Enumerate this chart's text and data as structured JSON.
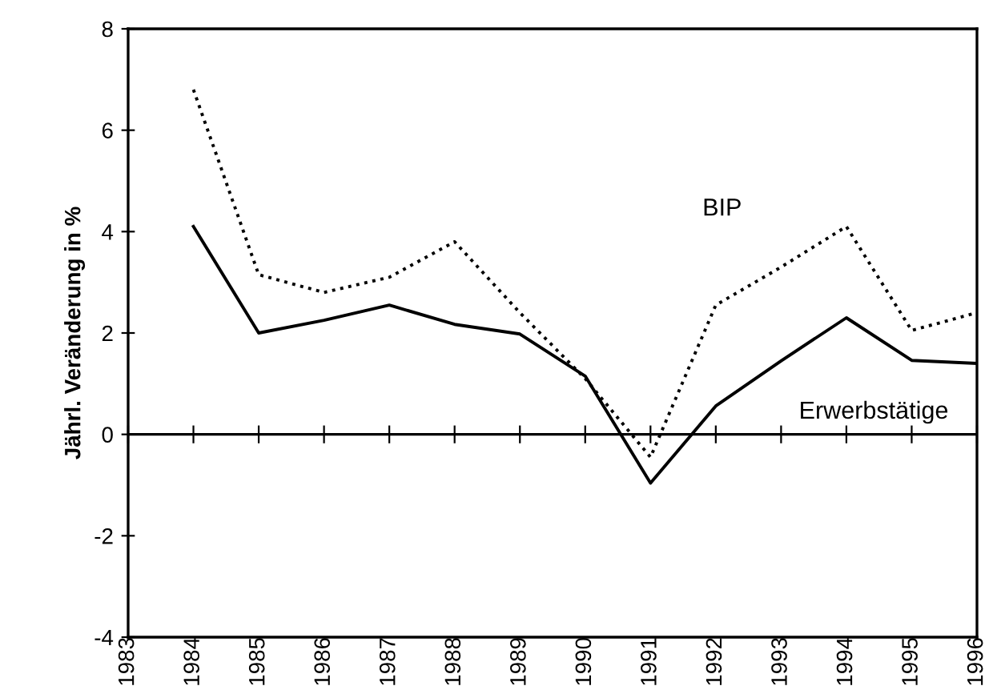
{
  "chart_data": {
    "type": "line",
    "ylabel": "Jährl. Veränderung in %",
    "x": [
      1984,
      1985,
      1986,
      1987,
      1988,
      1989,
      1990,
      1991,
      1992,
      1993,
      1994,
      1995,
      1996
    ],
    "series": [
      {
        "name": "BIP",
        "color": "#000000",
        "line_style": "dotted",
        "values": [
          6.8,
          3.15,
          2.8,
          3.1,
          3.8,
          2.4,
          1.1,
          -0.45,
          2.55,
          3.3,
          4.1,
          2.05,
          2.4
        ]
      },
      {
        "name": "Erwerbstätige",
        "color": "#000000",
        "line_style": "solid",
        "values": [
          4.1,
          2.0,
          2.25,
          2.55,
          2.17,
          1.98,
          1.15,
          -0.96,
          0.56,
          1.45,
          2.3,
          1.46,
          1.4
        ]
      }
    ],
    "ref_lines": [
      {
        "axis": "y",
        "value": 0
      }
    ],
    "xlim": [
      1983,
      1996
    ],
    "xticks": [
      1983,
      1984,
      1985,
      1986,
      1987,
      1988,
      1989,
      1990,
      1991,
      1992,
      1993,
      1994,
      1995,
      1996
    ],
    "ylim": [
      -4,
      8
    ],
    "yticks": [
      -4,
      -2,
      0,
      2,
      4,
      6,
      8
    ],
    "grid": false,
    "legend": false,
    "marker": "none"
  }
}
